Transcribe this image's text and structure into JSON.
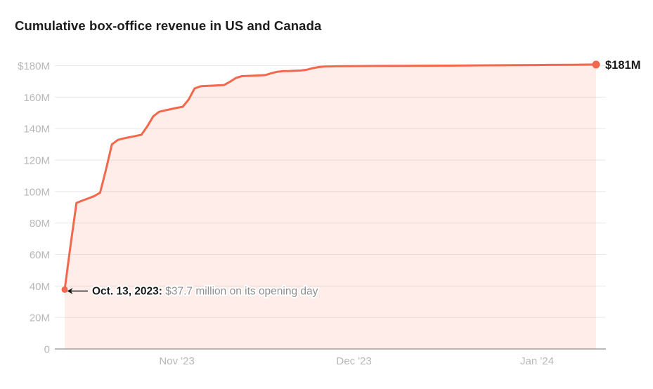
{
  "chart_data": {
    "type": "area",
    "title": "Cumulative box-office revenue in US and Canada",
    "xlabel": "",
    "ylabel": "",
    "unit": "USD, millions",
    "ylim": [
      0,
      180
    ],
    "grid": "horizontal",
    "legend": "none",
    "colors": {
      "line": "#f2684c",
      "fill": "rgba(243,103,77,0.12)",
      "axis_text": "#b7b7b7",
      "gridline": "#e9e9e9",
      "zero_axis": "#a3a3a3",
      "annotation_dark": "#1a1a1a",
      "annotation_gray": "#8e8e8e"
    },
    "y_ticks": [
      {
        "label": "$180M",
        "value": 180
      },
      {
        "label": "160M",
        "value": 160
      },
      {
        "label": "140M",
        "value": 140
      },
      {
        "label": "120M",
        "value": 120
      },
      {
        "label": "100M",
        "value": 100
      },
      {
        "label": "80M",
        "value": 80
      },
      {
        "label": "60M",
        "value": 60
      },
      {
        "label": "40M",
        "value": 40
      },
      {
        "label": "20M",
        "value": 20
      },
      {
        "label": "0",
        "value": 0
      }
    ],
    "x_ticks": [
      {
        "label": "Nov '23",
        "date": "2023-11-01"
      },
      {
        "label": "Dec '23",
        "date": "2023-12-01"
      },
      {
        "label": "Jan '24",
        "date": "2024-01-01"
      }
    ],
    "series": [
      {
        "name": "Cumulative box-office revenue",
        "points": [
          [
            "2023-10-13",
            37.7
          ],
          [
            "2023-10-14",
            66.0
          ],
          [
            "2023-10-15",
            92.8
          ],
          [
            "2023-10-16",
            94.3
          ],
          [
            "2023-10-17",
            95.7
          ],
          [
            "2023-10-18",
            97.1
          ],
          [
            "2023-10-19",
            99.3
          ],
          [
            "2023-10-20",
            114.0
          ],
          [
            "2023-10-21",
            130.0
          ],
          [
            "2023-10-22",
            132.8
          ],
          [
            "2023-10-23",
            133.8
          ],
          [
            "2023-10-24",
            134.6
          ],
          [
            "2023-10-25",
            135.3
          ],
          [
            "2023-10-26",
            136.1
          ],
          [
            "2023-10-27",
            141.5
          ],
          [
            "2023-10-28",
            147.8
          ],
          [
            "2023-10-29",
            150.7
          ],
          [
            "2023-10-30",
            151.6
          ],
          [
            "2023-10-31",
            152.4
          ],
          [
            "2023-11-01",
            153.2
          ],
          [
            "2023-11-02",
            153.9
          ],
          [
            "2023-11-03",
            158.5
          ],
          [
            "2023-11-04",
            165.5
          ],
          [
            "2023-11-05",
            166.9
          ],
          [
            "2023-11-06",
            167.1
          ],
          [
            "2023-11-07",
            167.3
          ],
          [
            "2023-11-08",
            167.5
          ],
          [
            "2023-11-09",
            167.7
          ],
          [
            "2023-11-10",
            169.8
          ],
          [
            "2023-11-11",
            172.2
          ],
          [
            "2023-11-12",
            173.3
          ],
          [
            "2023-11-13",
            173.5
          ],
          [
            "2023-11-14",
            173.6
          ],
          [
            "2023-11-15",
            173.8
          ],
          [
            "2023-11-16",
            174.0
          ],
          [
            "2023-11-17",
            175.2
          ],
          [
            "2023-11-18",
            176.1
          ],
          [
            "2023-11-19",
            176.5
          ],
          [
            "2023-11-20",
            176.6
          ],
          [
            "2023-11-21",
            176.8
          ],
          [
            "2023-11-22",
            176.9
          ],
          [
            "2023-11-23",
            177.4
          ],
          [
            "2023-11-24",
            178.4
          ],
          [
            "2023-11-25",
            179.1
          ],
          [
            "2023-11-26",
            179.4
          ],
          [
            "2023-11-27",
            179.5
          ],
          [
            "2023-11-28",
            179.6
          ],
          [
            "2023-11-30",
            179.7
          ],
          [
            "2023-12-05",
            179.8
          ],
          [
            "2023-12-10",
            179.9
          ],
          [
            "2023-12-16",
            180.0
          ],
          [
            "2023-12-22",
            180.2
          ],
          [
            "2023-12-29",
            180.3
          ],
          [
            "2024-01-03",
            180.5
          ],
          [
            "2024-01-07",
            180.6
          ],
          [
            "2024-01-11",
            180.7
          ]
        ]
      }
    ],
    "annotations": {
      "opening_day": {
        "bold_text": "Oct. 13, 2023:",
        "gray_text": " $37.7 million on its opening day",
        "date": "2023-10-13",
        "value": 37.7,
        "arrow": "left-arrow-to-point"
      },
      "end_value": {
        "text": "$181M",
        "date": "2024-01-11",
        "value": 180.7
      }
    }
  }
}
